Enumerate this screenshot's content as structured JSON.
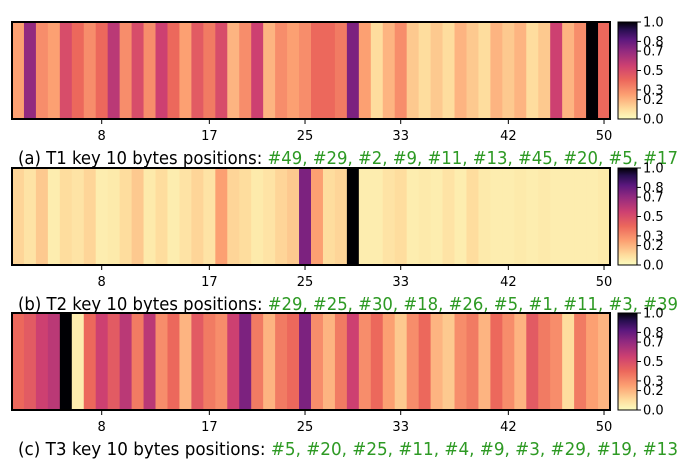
{
  "chart_data": [
    {
      "type": "heatmap",
      "caption_prefix": "(a) T1 key 10 bytes positions: ",
      "caption_positions": "#49, #29, #2, #9, #11, #13, #45, #20, #5, #17",
      "xticks": [
        8,
        17,
        25,
        33,
        42,
        50
      ],
      "colorbar_ticks": [
        "1.0",
        "0.8",
        "0.7",
        "0.5",
        "0.3",
        "0.2",
        "0.0"
      ],
      "vmin": 0,
      "vmax": 1,
      "values": [
        0.25,
        0.7,
        0.3,
        0.25,
        0.5,
        0.4,
        0.3,
        0.4,
        0.6,
        0.3,
        0.5,
        0.3,
        0.55,
        0.4,
        0.25,
        0.45,
        0.35,
        0.5,
        0.2,
        0.3,
        0.55,
        0.2,
        0.3,
        0.25,
        0.3,
        0.4,
        0.4,
        0.35,
        0.75,
        0.25,
        0.1,
        0.2,
        0.3,
        0.15,
        0.1,
        0.15,
        0.1,
        0.2,
        0.15,
        0.1,
        0.2,
        0.15,
        0.2,
        0.1,
        0.15,
        0.55,
        0.2,
        0.3,
        1.0,
        0.4
      ]
    },
    {
      "type": "heatmap",
      "caption_prefix": "(b) T2 key 10 bytes positions: ",
      "caption_positions": "#29, #25, #30, #18, #26, #5, #1, #11, #3, #39",
      "xticks": [
        8,
        17,
        25,
        33,
        42,
        50
      ],
      "colorbar_ticks": [
        "1.0",
        "0.8",
        "0.7",
        "0.5",
        "0.3",
        "0.2",
        "0.0"
      ],
      "vmin": 0,
      "vmax": 1,
      "values": [
        0.12,
        0.08,
        0.15,
        0.05,
        0.1,
        0.08,
        0.12,
        0.05,
        0.06,
        0.1,
        0.15,
        0.06,
        0.1,
        0.05,
        0.08,
        0.12,
        0.08,
        0.25,
        0.12,
        0.1,
        0.06,
        0.08,
        0.12,
        0.15,
        0.75,
        0.25,
        0.1,
        0.12,
        1.0,
        0.05,
        0.05,
        0.08,
        0.1,
        0.05,
        0.06,
        0.05,
        0.08,
        0.05,
        0.1,
        0.06,
        0.05,
        0.05,
        0.06,
        0.05,
        0.06,
        0.05,
        0.05,
        0.05,
        0.05,
        0.06
      ]
    },
    {
      "type": "heatmap",
      "caption_prefix": "(c) T3 key 10 bytes positions: ",
      "caption_positions": "#5, #20, #25, #11, #4, #9, #3, #29, #19, #13",
      "xticks": [
        8,
        17,
        25,
        33,
        42,
        50
      ],
      "colorbar_ticks": [
        "1.0",
        "0.8",
        "0.7",
        "0.5",
        "0.3",
        "0.2",
        "0.0"
      ],
      "vmin": 0,
      "vmax": 1,
      "values": [
        0.4,
        0.45,
        0.55,
        0.6,
        1.0,
        0.05,
        0.4,
        0.55,
        0.45,
        0.6,
        0.35,
        0.6,
        0.3,
        0.4,
        0.2,
        0.45,
        0.35,
        0.3,
        0.55,
        0.75,
        0.35,
        0.2,
        0.35,
        0.4,
        0.75,
        0.3,
        0.2,
        0.35,
        0.55,
        0.3,
        0.4,
        0.25,
        0.15,
        0.3,
        0.4,
        0.2,
        0.15,
        0.3,
        0.35,
        0.2,
        0.4,
        0.3,
        0.2,
        0.45,
        0.35,
        0.3,
        0.1,
        0.35,
        0.25,
        0.2
      ]
    }
  ],
  "colors": {
    "caption_prefix": "#000000",
    "caption_positions": "#2e9a24"
  }
}
